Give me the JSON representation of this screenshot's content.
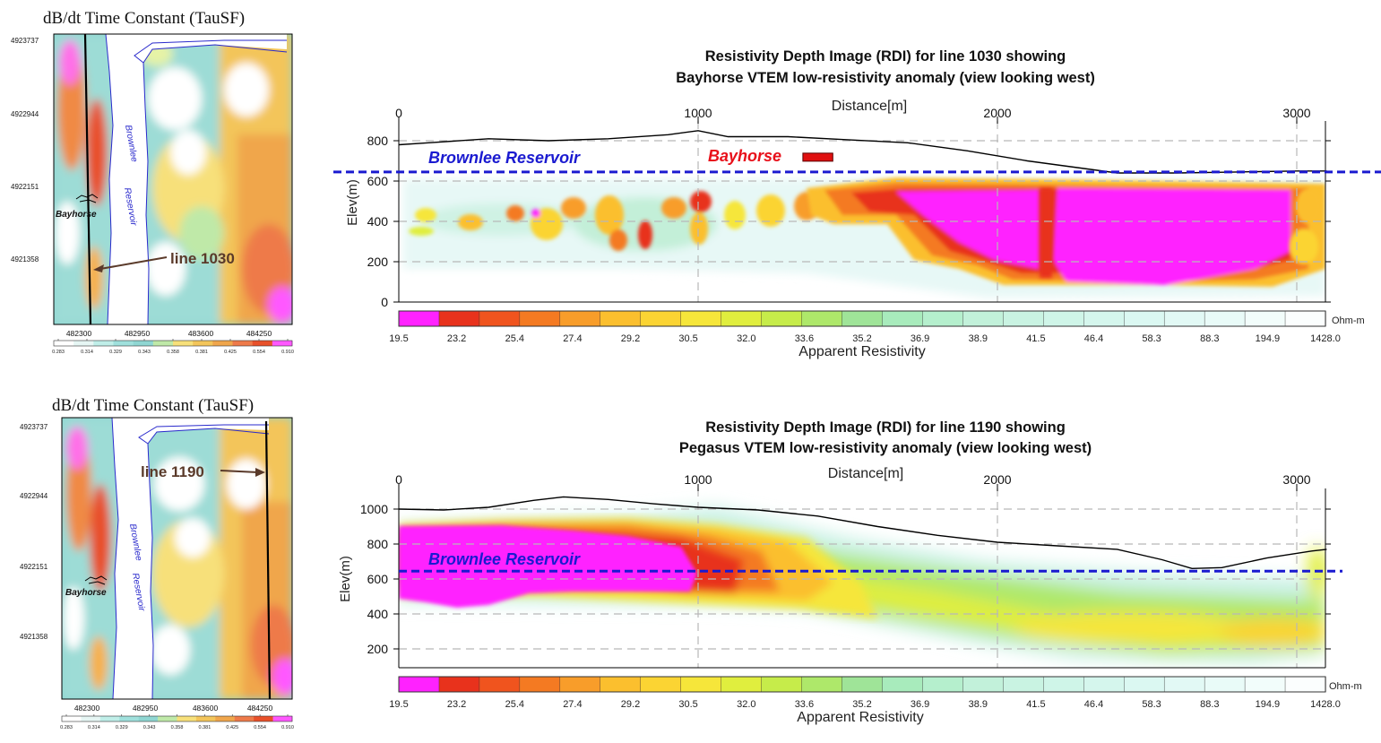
{
  "colors": {
    "palette": [
      "#ff22ff",
      "#e8321c",
      "#f0541e",
      "#f47a22",
      "#f89d2a",
      "#fbbf2e",
      "#fbd433",
      "#f6e63a",
      "#e0ee3e",
      "#c6ec4a",
      "#aee86a",
      "#9fe498",
      "#a8ebbc",
      "#b5efcd",
      "#c2f1da",
      "#c9f3e2",
      "#cff5e8",
      "#d5f6ed",
      "#dbf8f2",
      "#e2f9f5",
      "#e9fbf8",
      "#f2fdfb",
      "#fbfefe"
    ],
    "reservoir_line": "#1a1ad0",
    "bayhorse_label": "#e8101a",
    "bayhorse_marker": "#e01010"
  },
  "panels": [
    {
      "map": {
        "title": "dB/dt Time Constant (TauSF)",
        "y_ticks": [
          "4923737",
          "4922944",
          "4922151",
          "4921358"
        ],
        "x_ticks": [
          "482300",
          "482950",
          "483600",
          "484250"
        ],
        "scale_ticks": [
          "0.283",
          "0.314",
          "0.329",
          "0.343",
          "0.358",
          "0.381",
          "0.425",
          "0.554",
          "0.910"
        ],
        "river_label_1": "Brownlee",
        "river_label_2": "Reservoir",
        "town_label": "Bayhorse",
        "line_label": "line 1030"
      },
      "rdi": {
        "title_1": "Resistivity Depth Image (RDI) for line 1030 showing",
        "title_2": "Bayhorse VTEM low-resistivity anomaly (view looking west)",
        "xlabel": "Distance[m]",
        "ylabel": "Elev(m)",
        "reservoir_label": "Brownlee Reservoir",
        "anomaly_label": "Bayhorse",
        "colorbar_label": "Apparent Resistivity",
        "unit": "Ohm-m"
      }
    },
    {
      "map": {
        "title": "dB/dt Time Constant (TauSF)",
        "y_ticks": [
          "4923737",
          "4922944",
          "4922151",
          "4921358"
        ],
        "x_ticks": [
          "482300",
          "482950",
          "483600",
          "484250"
        ],
        "scale_ticks": [
          "0.283",
          "0.314",
          "0.329",
          "0.343",
          "0.358",
          "0.381",
          "0.425",
          "0.554",
          "0.910"
        ],
        "river_label_1": "Brownlee",
        "river_label_2": "Reservoir",
        "town_label": "Bayhorse",
        "line_label": "line 1190"
      },
      "rdi": {
        "title_1": "Resistivity Depth Image (RDI) for line 1190 showing",
        "title_2": "Pegasus VTEM low-resistivity anomaly (view looking west)",
        "xlabel": "Distance[m]",
        "ylabel": "Elev(m)",
        "reservoir_label": "Brownlee Reservoir",
        "colorbar_label": "Apparent Resistivity",
        "unit": "Ohm-m"
      }
    }
  ],
  "chart_data": [
    {
      "type": "heatmap",
      "title": "Resistivity Depth Image (RDI) for line 1030 showing Bayhorse VTEM low-resistivity anomaly (view looking west)",
      "xlabel": "Distance[m]",
      "ylabel": "Elev(m)",
      "x_ticks": [
        0,
        1000,
        2000,
        3000
      ],
      "y_ticks": [
        0,
        200,
        400,
        600,
        800
      ],
      "xlim": [
        0,
        3100
      ],
      "ylim": [
        0,
        870
      ],
      "reservoir_level": 645,
      "surface_profile": {
        "x": [
          0,
          100,
          300,
          500,
          700,
          900,
          1000,
          1100,
          1300,
          1500,
          1700,
          1900,
          2100,
          2300,
          2400,
          2600,
          2800,
          3000,
          3100
        ],
        "y": [
          780,
          790,
          810,
          800,
          810,
          830,
          850,
          820,
          820,
          805,
          790,
          750,
          700,
          660,
          640,
          640,
          645,
          650,
          650
        ]
      },
      "anomaly_marker_x": [
        1350,
        1450
      ],
      "colorbar": {
        "ticks": [
          "19.5",
          "23.2",
          "25.4",
          "27.4",
          "29.2",
          "30.5",
          "32.0",
          "33.6",
          "35.2",
          "36.9",
          "38.9",
          "41.5",
          "46.4",
          "58.3",
          "88.3",
          "194.9",
          "1428.0"
        ],
        "label": "Apparent Resistivity",
        "unit": "Ohm-m"
      }
    },
    {
      "type": "heatmap",
      "title": "Resistivity Depth Image (RDI) for line 1190 showing Pegasus VTEM low-resistivity anomaly (view looking west)",
      "xlabel": "Distance[m]",
      "ylabel": "Elev(m)",
      "x_ticks": [
        0,
        1000,
        2000,
        3000
      ],
      "y_ticks": [
        200,
        400,
        600,
        800,
        1000
      ],
      "xlim": [
        0,
        3100
      ],
      "ylim": [
        100,
        1100
      ],
      "reservoir_level": 645,
      "surface_profile": {
        "x": [
          0,
          150,
          300,
          450,
          550,
          700,
          850,
          1000,
          1200,
          1400,
          1600,
          1800,
          2000,
          2200,
          2400,
          2550,
          2650,
          2750,
          2900,
          3050,
          3100
        ],
        "y": [
          1000,
          995,
          1010,
          1050,
          1070,
          1055,
          1030,
          1010,
          995,
          960,
          900,
          850,
          810,
          790,
          770,
          710,
          660,
          665,
          720,
          760,
          770
        ]
      },
      "colorbar": {
        "ticks": [
          "19.5",
          "23.2",
          "25.4",
          "27.4",
          "29.2",
          "30.5",
          "32.0",
          "33.6",
          "35.2",
          "36.9",
          "38.9",
          "41.5",
          "46.4",
          "58.3",
          "88.3",
          "194.9",
          "1428.0"
        ],
        "label": "Apparent Resistivity",
        "unit": "Ohm-m"
      }
    }
  ]
}
